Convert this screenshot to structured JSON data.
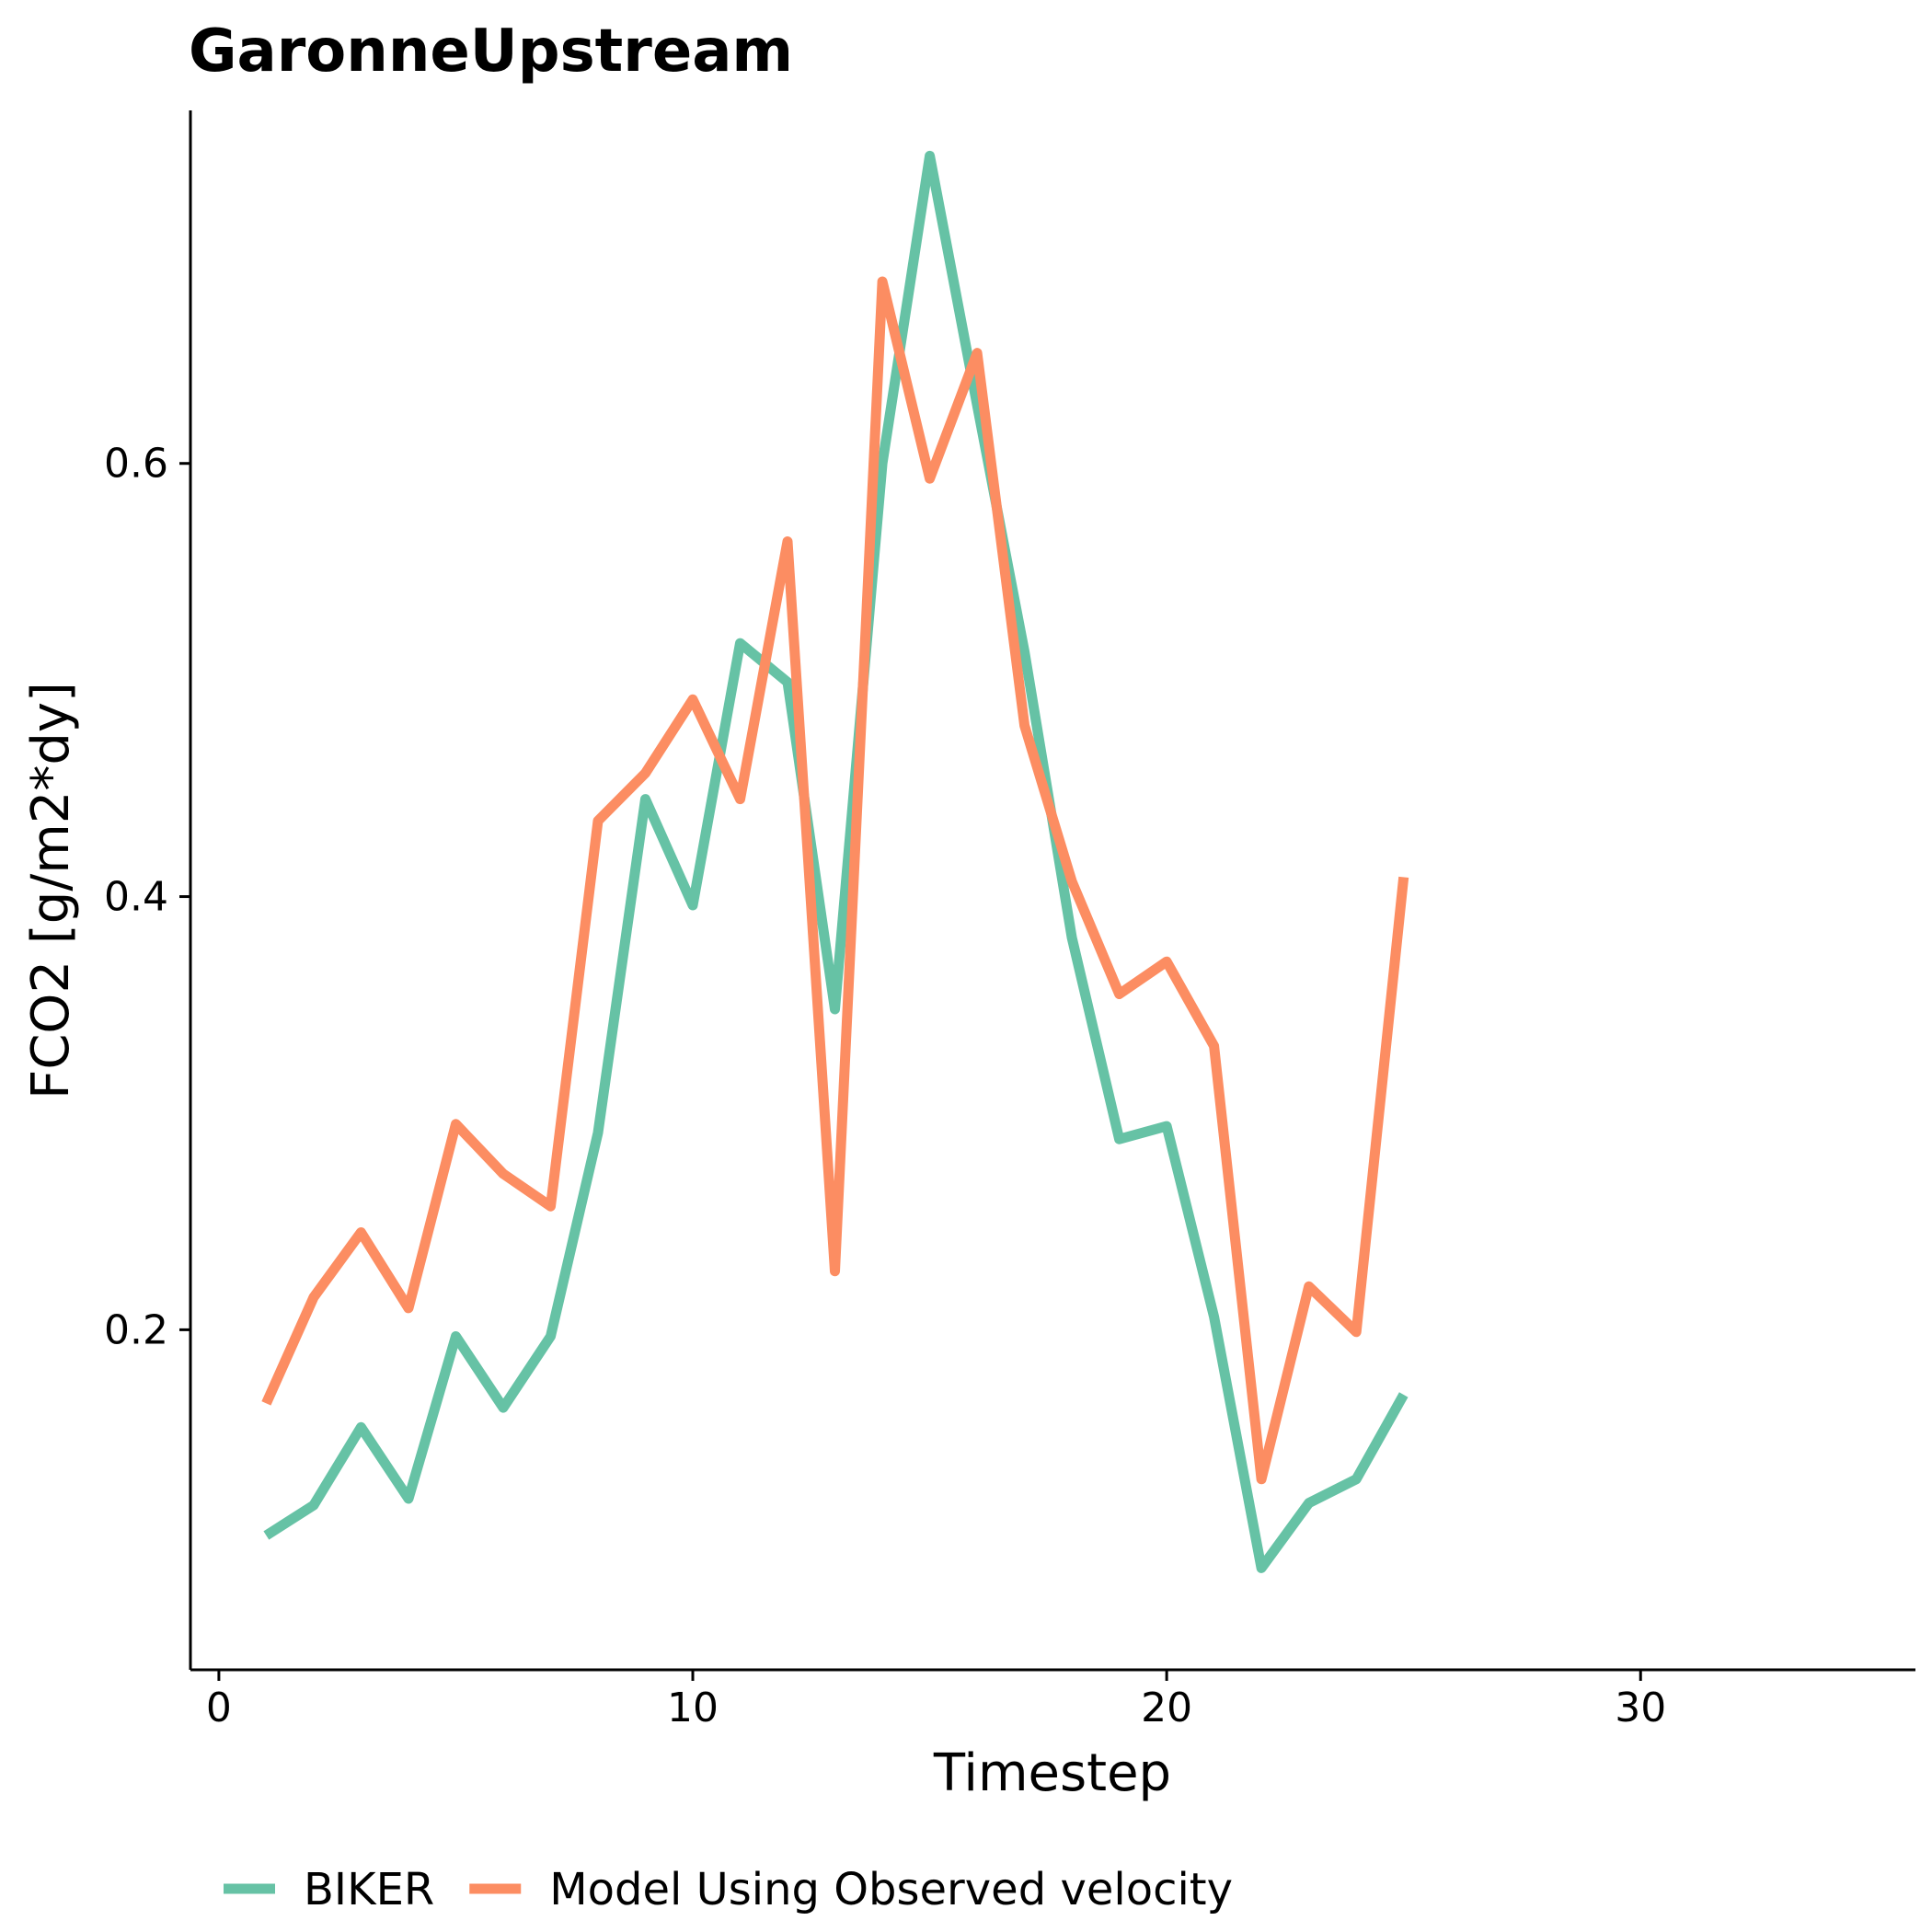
{
  "chart_data": {
    "type": "line",
    "title": "GaronneUpstream",
    "xlabel": "Timestep",
    "ylabel": "FCO2 [g/m2*dy]",
    "xlim": [
      -0.6,
      35.8
    ],
    "ylim": [
      0.043,
      0.763
    ],
    "xticks": [
      0,
      10,
      20,
      30
    ],
    "xtick_labels": [
      "0",
      "10",
      "20",
      "30"
    ],
    "yticks": [
      0.2,
      0.4,
      0.6
    ],
    "ytick_labels": [
      "0.2",
      "0.4",
      "0.6"
    ],
    "grid": false,
    "legend_position": "bottom",
    "x": [
      1,
      2,
      3,
      4,
      5,
      6,
      7,
      8,
      9,
      10,
      11,
      12,
      13,
      14,
      15,
      16,
      17,
      18,
      19,
      20,
      21,
      22,
      23,
      24,
      25
    ],
    "series": [
      {
        "name": "BIKER",
        "color": "#66c2a5",
        "values": [
          0.105,
          0.119,
          0.155,
          0.122,
          0.197,
          0.164,
          0.197,
          0.291,
          0.445,
          0.396,
          0.517,
          0.499,
          0.348,
          0.6,
          0.742,
          0.627,
          0.513,
          0.381,
          0.288,
          0.294,
          0.206,
          0.09,
          0.12,
          0.131,
          0.17
        ]
      },
      {
        "name": "Model Using Observed velocity",
        "color": "#fc8d62",
        "values": [
          0.166,
          0.215,
          0.245,
          0.21,
          0.295,
          0.272,
          0.257,
          0.435,
          0.457,
          0.491,
          0.445,
          0.564,
          0.227,
          0.684,
          0.593,
          0.651,
          0.479,
          0.407,
          0.355,
          0.37,
          0.331,
          0.131,
          0.22,
          0.199,
          0.409
        ]
      }
    ]
  }
}
